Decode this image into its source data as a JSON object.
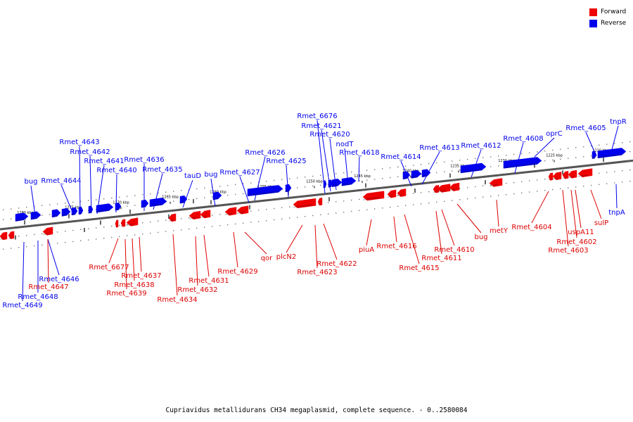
{
  "caption": "Cupriavidus metallidurans CH34 megaplasmid, complete sequence. - 0..2580084",
  "legend": {
    "forward_label": "Forward",
    "reverse_label": "Reverse",
    "forward_color": "#ee0000",
    "reverse_color": "#0000ee"
  },
  "colors": {
    "backbone": "#555555",
    "leader": "#0000ee",
    "leader_fwd": "#dd0000"
  },
  "ticks": [
    "1280 kbp",
    "1275 kbp",
    "1270 kbp",
    "1265 kbp",
    "1260 kbp",
    "1255 kbp",
    "1250 kbp",
    "1245 kbp",
    "1240 kbp",
    "1235 kbp",
    "1230 kbp",
    "1225 kbp",
    "1220 kbp"
  ],
  "reverse_labels": [
    "tnpR",
    "Rmet_4605",
    "oprC",
    "Rmet_4608",
    "Rmet_4612",
    "Rmet_4613",
    "Rmet_4614",
    "Rmet_4618",
    "nodT",
    "Rmet_4620",
    "Rmet_4621",
    "Rmet_6676",
    "Rmet_4625",
    "Rmet_4626",
    "Rmet_4627",
    "bug",
    "tauD",
    "Rmet_4635",
    "Rmet_4636",
    "Rmet_4640",
    "Rmet_4641",
    "Rmet_4642",
    "Rmet_4643",
    "Rmet_4644",
    "bug",
    "tnpA",
    "Rmet_4646",
    "Rmet_4648",
    "Rmet_4649"
  ],
  "forward_labels": [
    "sulP",
    "Rmet_4603",
    "Rmet_4602",
    "uspA11",
    "Rmet_4604",
    "metY",
    "bug",
    "Rmet_4610",
    "Rmet_4611",
    "Rmet_4615",
    "Rmet_4616",
    "piuA",
    "Rmet_4622",
    "Rmet_4623",
    "plcN2",
    "qor",
    "Rmet_4629",
    "Rmet_4631",
    "Rmet_4632",
    "Rmet_4634",
    "Rmet_4637",
    "Rmet_4638",
    "Rmet_4639",
    "Rmet_6677",
    "Rmet_4647"
  ]
}
